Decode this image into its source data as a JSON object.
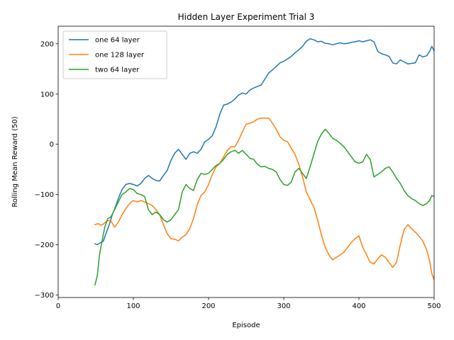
{
  "chart_data": {
    "type": "line",
    "title": "Hidden Layer Experiment Trial 3",
    "xlabel": "Episode",
    "ylabel": "Rolling Mean Reward (50)",
    "xlim": [
      0,
      500
    ],
    "ylim": [
      -305,
      235
    ],
    "xticks": [
      0,
      100,
      200,
      300,
      400,
      500
    ],
    "yticks": [
      -300,
      -200,
      -100,
      0,
      100,
      200
    ],
    "grid": false,
    "legend_position": "top-left",
    "series": [
      {
        "name": "one 64 layer",
        "color": "#1f77b4",
        "points": [
          [
            49,
            -198
          ],
          [
            52,
            -200
          ],
          [
            56,
            -196
          ],
          [
            60,
            -193
          ],
          [
            63,
            -180
          ],
          [
            68,
            -160
          ],
          [
            72,
            -140
          ],
          [
            76,
            -125
          ],
          [
            80,
            -108
          ],
          [
            85,
            -90
          ],
          [
            90,
            -80
          ],
          [
            95,
            -78
          ],
          [
            100,
            -80
          ],
          [
            105,
            -83
          ],
          [
            110,
            -78
          ],
          [
            115,
            -68
          ],
          [
            120,
            -62
          ],
          [
            125,
            -68
          ],
          [
            130,
            -72
          ],
          [
            135,
            -73
          ],
          [
            140,
            -62
          ],
          [
            145,
            -52
          ],
          [
            150,
            -32
          ],
          [
            155,
            -18
          ],
          [
            160,
            -10
          ],
          [
            165,
            -20
          ],
          [
            170,
            -30
          ],
          [
            175,
            -18
          ],
          [
            180,
            -15
          ],
          [
            185,
            -18
          ],
          [
            190,
            -10
          ],
          [
            195,
            5
          ],
          [
            200,
            10
          ],
          [
            205,
            17
          ],
          [
            210,
            35
          ],
          [
            215,
            60
          ],
          [
            220,
            78
          ],
          [
            225,
            80
          ],
          [
            230,
            84
          ],
          [
            235,
            90
          ],
          [
            240,
            98
          ],
          [
            245,
            102
          ],
          [
            250,
            100
          ],
          [
            255,
            108
          ],
          [
            260,
            112
          ],
          [
            265,
            115
          ],
          [
            270,
            118
          ],
          [
            275,
            130
          ],
          [
            280,
            142
          ],
          [
            285,
            148
          ],
          [
            290,
            155
          ],
          [
            295,
            162
          ],
          [
            300,
            165
          ],
          [
            305,
            170
          ],
          [
            310,
            175
          ],
          [
            315,
            182
          ],
          [
            320,
            188
          ],
          [
            325,
            195
          ],
          [
            330,
            205
          ],
          [
            335,
            210
          ],
          [
            340,
            208
          ],
          [
            345,
            204
          ],
          [
            350,
            205
          ],
          [
            355,
            201
          ],
          [
            360,
            200
          ],
          [
            365,
            198
          ],
          [
            370,
            200
          ],
          [
            375,
            202
          ],
          [
            380,
            200
          ],
          [
            385,
            201
          ],
          [
            390,
            203
          ],
          [
            395,
            204
          ],
          [
            400,
            206
          ],
          [
            405,
            204
          ],
          [
            410,
            206
          ],
          [
            415,
            208
          ],
          [
            420,
            204
          ],
          [
            425,
            185
          ],
          [
            430,
            180
          ],
          [
            435,
            178
          ],
          [
            440,
            175
          ],
          [
            445,
            162
          ],
          [
            450,
            160
          ],
          [
            455,
            168
          ],
          [
            460,
            164
          ],
          [
            465,
            160
          ],
          [
            470,
            161
          ],
          [
            475,
            162
          ],
          [
            480,
            178
          ],
          [
            485,
            174
          ],
          [
            490,
            176
          ],
          [
            494,
            185
          ],
          [
            497,
            195
          ],
          [
            500,
            186
          ]
        ]
      },
      {
        "name": "one 128 layer",
        "color": "#ff7f0e",
        "points": [
          [
            49,
            -160
          ],
          [
            53,
            -158
          ],
          [
            57,
            -161
          ],
          [
            61,
            -158
          ],
          [
            65,
            -152
          ],
          [
            70,
            -152
          ],
          [
            75,
            -165
          ],
          [
            80,
            -155
          ],
          [
            85,
            -140
          ],
          [
            90,
            -128
          ],
          [
            95,
            -118
          ],
          [
            100,
            -112
          ],
          [
            105,
            -115
          ],
          [
            110,
            -112
          ],
          [
            115,
            -115
          ],
          [
            120,
            -118
          ],
          [
            125,
            -122
          ],
          [
            130,
            -130
          ],
          [
            135,
            -140
          ],
          [
            140,
            -160
          ],
          [
            145,
            -178
          ],
          [
            150,
            -188
          ],
          [
            155,
            -189
          ],
          [
            160,
            -192
          ],
          [
            165,
            -185
          ],
          [
            170,
            -180
          ],
          [
            175,
            -168
          ],
          [
            180,
            -148
          ],
          [
            185,
            -120
          ],
          [
            190,
            -102
          ],
          [
            195,
            -95
          ],
          [
            200,
            -80
          ],
          [
            205,
            -60
          ],
          [
            210,
            -45
          ],
          [
            215,
            -38
          ],
          [
            220,
            -25
          ],
          [
            225,
            -12
          ],
          [
            230,
            -5
          ],
          [
            235,
            -5
          ],
          [
            240,
            8
          ],
          [
            245,
            25
          ],
          [
            250,
            40
          ],
          [
            255,
            42
          ],
          [
            260,
            45
          ],
          [
            265,
            50
          ],
          [
            270,
            52
          ],
          [
            275,
            52
          ],
          [
            280,
            52
          ],
          [
            285,
            42
          ],
          [
            290,
            30
          ],
          [
            295,
            15
          ],
          [
            300,
            8
          ],
          [
            305,
            5
          ],
          [
            310,
            -8
          ],
          [
            315,
            -20
          ],
          [
            320,
            -40
          ],
          [
            325,
            -65
          ],
          [
            330,
            -95
          ],
          [
            335,
            -110
          ],
          [
            340,
            -125
          ],
          [
            345,
            -150
          ],
          [
            350,
            -180
          ],
          [
            355,
            -205
          ],
          [
            360,
            -220
          ],
          [
            365,
            -230
          ],
          [
            370,
            -225
          ],
          [
            375,
            -220
          ],
          [
            380,
            -215
          ],
          [
            385,
            -205
          ],
          [
            390,
            -195
          ],
          [
            395,
            -188
          ],
          [
            400,
            -182
          ],
          [
            405,
            -205
          ],
          [
            410,
            -220
          ],
          [
            415,
            -235
          ],
          [
            420,
            -238
          ],
          [
            425,
            -228
          ],
          [
            430,
            -220
          ],
          [
            435,
            -225
          ],
          [
            440,
            -235
          ],
          [
            445,
            -245
          ],
          [
            450,
            -235
          ],
          [
            455,
            -200
          ],
          [
            460,
            -170
          ],
          [
            465,
            -160
          ],
          [
            470,
            -168
          ],
          [
            475,
            -175
          ],
          [
            480,
            -183
          ],
          [
            485,
            -193
          ],
          [
            490,
            -210
          ],
          [
            494,
            -232
          ],
          [
            497,
            -258
          ],
          [
            500,
            -270
          ]
        ]
      },
      {
        "name": "two 64 layer",
        "color": "#2ca02c",
        "points": [
          [
            49,
            -280
          ],
          [
            52,
            -262
          ],
          [
            55,
            -220
          ],
          [
            58,
            -195
          ],
          [
            62,
            -165
          ],
          [
            66,
            -148
          ],
          [
            70,
            -145
          ],
          [
            75,
            -130
          ],
          [
            80,
            -115
          ],
          [
            85,
            -100
          ],
          [
            90,
            -95
          ],
          [
            95,
            -88
          ],
          [
            100,
            -90
          ],
          [
            105,
            -98
          ],
          [
            110,
            -100
          ],
          [
            115,
            -104
          ],
          [
            120,
            -130
          ],
          [
            125,
            -140
          ],
          [
            130,
            -135
          ],
          [
            135,
            -140
          ],
          [
            140,
            -150
          ],
          [
            145,
            -155
          ],
          [
            150,
            -150
          ],
          [
            155,
            -140
          ],
          [
            160,
            -130
          ],
          [
            165,
            -95
          ],
          [
            170,
            -80
          ],
          [
            175,
            -88
          ],
          [
            180,
            -92
          ],
          [
            185,
            -70
          ],
          [
            190,
            -58
          ],
          [
            195,
            -60
          ],
          [
            200,
            -58
          ],
          [
            205,
            -50
          ],
          [
            210,
            -42
          ],
          [
            215,
            -38
          ],
          [
            220,
            -30
          ],
          [
            225,
            -20
          ],
          [
            230,
            -15
          ],
          [
            235,
            -12
          ],
          [
            240,
            -18
          ],
          [
            245,
            -12
          ],
          [
            250,
            -20
          ],
          [
            255,
            -28
          ],
          [
            260,
            -30
          ],
          [
            265,
            -40
          ],
          [
            270,
            -45
          ],
          [
            275,
            -44
          ],
          [
            280,
            -48
          ],
          [
            285,
            -50
          ],
          [
            290,
            -55
          ],
          [
            295,
            -70
          ],
          [
            300,
            -80
          ],
          [
            305,
            -82
          ],
          [
            310,
            -75
          ],
          [
            315,
            -55
          ],
          [
            320,
            -48
          ],
          [
            325,
            -58
          ],
          [
            330,
            -68
          ],
          [
            335,
            -45
          ],
          [
            340,
            -20
          ],
          [
            345,
            5
          ],
          [
            350,
            20
          ],
          [
            355,
            30
          ],
          [
            360,
            22
          ],
          [
            365,
            12
          ],
          [
            370,
            8
          ],
          [
            375,
            2
          ],
          [
            380,
            -5
          ],
          [
            385,
            -15
          ],
          [
            390,
            -25
          ],
          [
            395,
            -35
          ],
          [
            400,
            -38
          ],
          [
            405,
            -35
          ],
          [
            410,
            -20
          ],
          [
            415,
            -30
          ],
          [
            420,
            -65
          ],
          [
            425,
            -60
          ],
          [
            430,
            -55
          ],
          [
            435,
            -48
          ],
          [
            440,
            -45
          ],
          [
            445,
            -55
          ],
          [
            450,
            -68
          ],
          [
            455,
            -78
          ],
          [
            460,
            -92
          ],
          [
            465,
            -102
          ],
          [
            470,
            -108
          ],
          [
            475,
            -112
          ],
          [
            480,
            -118
          ],
          [
            485,
            -122
          ],
          [
            490,
            -118
          ],
          [
            494,
            -112
          ],
          [
            497,
            -102
          ],
          [
            500,
            -104
          ]
        ]
      }
    ]
  }
}
